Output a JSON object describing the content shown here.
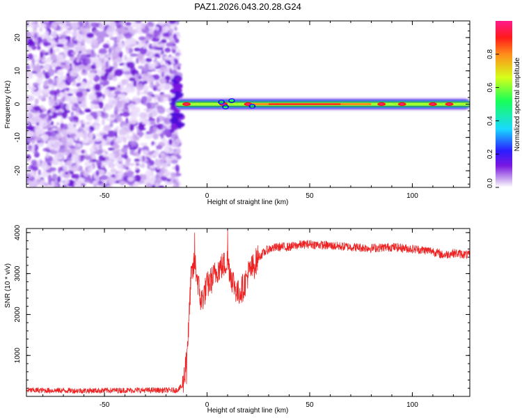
{
  "title": "PAZ1.2026.043.20.28.G24",
  "colorbar": {
    "label": "Normalized spectral amplitude",
    "ticks": [
      0.0,
      0.2,
      0.4,
      0.6,
      0.8
    ],
    "tick_labels": [
      "0.0",
      "0.2",
      "0.4",
      "0.6",
      "0.8"
    ],
    "range": [
      0,
      1
    ],
    "colors": [
      "#ffffff",
      "#c9a7ef",
      "#7a18e0",
      "#2b1cff",
      "#19d8ff",
      "#19ff57",
      "#d6ff1a",
      "#ff8c1a",
      "#ff1a1a",
      "#ff1a8c"
    ]
  },
  "chart_data": [
    {
      "type": "heatmap",
      "xlabel": "Height of straight line (km)",
      "ylabel": "Frequency (Hz)",
      "xlim": [
        -88,
        128
      ],
      "ylim": [
        -25,
        25
      ],
      "xticks": [
        -50,
        0,
        50,
        100
      ],
      "xtick_labels": [
        "-50",
        "0",
        "50",
        "100"
      ],
      "yticks": [
        -20,
        -10,
        0,
        10,
        20
      ],
      "ytick_labels": [
        "-20",
        "-10",
        "0",
        "10",
        "20"
      ],
      "noise_region_x": [
        -88,
        -15
      ],
      "signal_band": {
        "x": [
          -15,
          128
        ],
        "center_frequency_hz": 0,
        "peak_x": [
          -10,
          8,
          20,
          85,
          95,
          110,
          118
        ],
        "sidelobe_x": [
          7,
          9,
          12,
          22
        ]
      }
    },
    {
      "type": "line",
      "xlabel": "Height of straight line (km)",
      "ylabel": "SNR (10 * v/v)",
      "xlim": [
        -88,
        128
      ],
      "ylim": [
        0,
        4100
      ],
      "xticks": [
        -50,
        0,
        50,
        100
      ],
      "xtick_labels": [
        "-50",
        "0",
        "50",
        "100"
      ],
      "yticks": [
        1000,
        2000,
        3000,
        4000
      ],
      "ytick_labels": [
        "1000",
        "2000",
        "3000",
        "4000"
      ],
      "color": "#ee2222",
      "x": [
        -88,
        -60,
        -40,
        -15,
        -12,
        -11,
        -10,
        -9,
        -8,
        -6,
        -3,
        0,
        3,
        5,
        8,
        10,
        12,
        15,
        18,
        20,
        23,
        25,
        30,
        35,
        40,
        45,
        50,
        60,
        70,
        80,
        90,
        100,
        110,
        115,
        120,
        128
      ],
      "values": [
        150,
        140,
        150,
        150,
        250,
        500,
        1100,
        1600,
        2800,
        3300,
        2300,
        2700,
        2900,
        3100,
        3200,
        3300,
        2900,
        2500,
        2700,
        3000,
        3200,
        3400,
        3600,
        3650,
        3650,
        3700,
        3720,
        3680,
        3650,
        3620,
        3650,
        3600,
        3550,
        3450,
        3500,
        3450
      ],
      "noise_amplitude": 70,
      "spikes": [
        {
          "x": -6,
          "y": 4000
        },
        {
          "x": 10,
          "y": 4050
        },
        {
          "x": -10,
          "y": 300
        }
      ]
    }
  ]
}
